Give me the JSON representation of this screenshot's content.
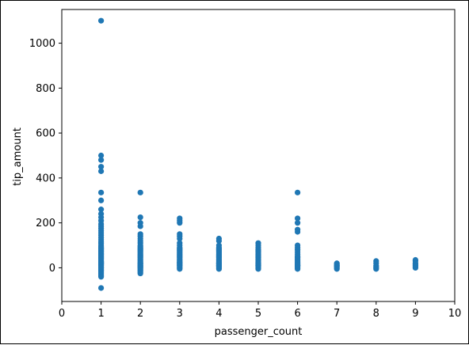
{
  "chart_data": {
    "type": "scatter",
    "title": "",
    "xlabel": "passenger_count",
    "ylabel": "tip_amount",
    "xlim": [
      0,
      10
    ],
    "ylim": [
      -150,
      1150
    ],
    "xticks": [
      0,
      1,
      2,
      3,
      4,
      5,
      6,
      7,
      8,
      9,
      10
    ],
    "yticks": [
      0,
      200,
      400,
      600,
      800,
      1000
    ],
    "grid": false,
    "legend": "none",
    "point_color": "#1f77b4",
    "series": [
      {
        "x": [
          1,
          1,
          1,
          1,
          1,
          1,
          1,
          1,
          1,
          1,
          1,
          1,
          1,
          1,
          1,
          1,
          1,
          1,
          1,
          1,
          1,
          1,
          1,
          1,
          1,
          1,
          1,
          1,
          1,
          1,
          1,
          1,
          1,
          1,
          1,
          1,
          1,
          1,
          1,
          1,
          1,
          1,
          1,
          1,
          1,
          1,
          1,
          1,
          1,
          1,
          1,
          1,
          1,
          1,
          1,
          1,
          1,
          1,
          1,
          1,
          2,
          2,
          2,
          2,
          2,
          2,
          2,
          2,
          2,
          2,
          2,
          2,
          2,
          2,
          2,
          2,
          2,
          2,
          2,
          2,
          2,
          2,
          2,
          2,
          2,
          2,
          2,
          2,
          2,
          2,
          2,
          2,
          2,
          2,
          2,
          2,
          2,
          2,
          3,
          3,
          3,
          3,
          3,
          3,
          3,
          3,
          3,
          3,
          3,
          3,
          3,
          3,
          3,
          3,
          3,
          3,
          3,
          3,
          3,
          3,
          3,
          3,
          3,
          3,
          3,
          3,
          3,
          3,
          4,
          4,
          4,
          4,
          4,
          4,
          4,
          4,
          4,
          4,
          4,
          4,
          4,
          4,
          4,
          4,
          4,
          4,
          4,
          4,
          4,
          4,
          4,
          4,
          4,
          5,
          5,
          5,
          5,
          5,
          5,
          5,
          5,
          5,
          5,
          5,
          5,
          5,
          5,
          5,
          5,
          5,
          5,
          5,
          5,
          5,
          5,
          5,
          5,
          6,
          6,
          6,
          6,
          6,
          6,
          6,
          6,
          6,
          6,
          6,
          6,
          6,
          6,
          6,
          6,
          6,
          6,
          6,
          6,
          6,
          6,
          6,
          6,
          7,
          7,
          7,
          7,
          7,
          7,
          7,
          8,
          8,
          8,
          8,
          8,
          8,
          9,
          9,
          9,
          9,
          9,
          9,
          9
        ],
        "y": [
          1100,
          500,
          480,
          450,
          430,
          335,
          300,
          260,
          240,
          225,
          210,
          195,
          185,
          175,
          165,
          155,
          145,
          135,
          125,
          115,
          108,
          100,
          95,
          90,
          85,
          80,
          75,
          70,
          65,
          60,
          55,
          50,
          45,
          40,
          35,
          30,
          25,
          20,
          15,
          10,
          5,
          0,
          -5,
          -10,
          -15,
          -20,
          -25,
          -30,
          -35,
          -40,
          -90,
          28,
          42,
          62,
          72,
          88,
          12,
          18,
          22,
          3,
          335,
          225,
          200,
          185,
          150,
          140,
          130,
          120,
          110,
          100,
          95,
          90,
          85,
          80,
          75,
          70,
          65,
          60,
          55,
          50,
          45,
          40,
          35,
          30,
          25,
          20,
          15,
          10,
          5,
          0,
          -5,
          -10,
          -15,
          -20,
          -25,
          8,
          18,
          2,
          220,
          210,
          200,
          150,
          140,
          130,
          110,
          100,
          90,
          85,
          80,
          75,
          70,
          65,
          60,
          55,
          50,
          45,
          40,
          35,
          30,
          25,
          20,
          15,
          10,
          5,
          0,
          -5,
          12,
          22,
          130,
          120,
          100,
          90,
          85,
          80,
          75,
          70,
          65,
          60,
          55,
          50,
          45,
          40,
          35,
          30,
          25,
          20,
          15,
          10,
          5,
          0,
          -5,
          8,
          18,
          110,
          100,
          90,
          80,
          75,
          70,
          65,
          60,
          55,
          50,
          45,
          40,
          35,
          30,
          25,
          20,
          15,
          10,
          5,
          0,
          -5,
          8,
          12,
          18,
          335,
          220,
          200,
          170,
          160,
          100,
          90,
          80,
          70,
          60,
          50,
          45,
          40,
          35,
          30,
          25,
          20,
          15,
          10,
          5,
          0,
          -5,
          8,
          12,
          20,
          15,
          10,
          5,
          0,
          -5,
          8,
          30,
          20,
          10,
          5,
          0,
          -5,
          35,
          30,
          20,
          15,
          10,
          5,
          0
        ]
      }
    ]
  }
}
